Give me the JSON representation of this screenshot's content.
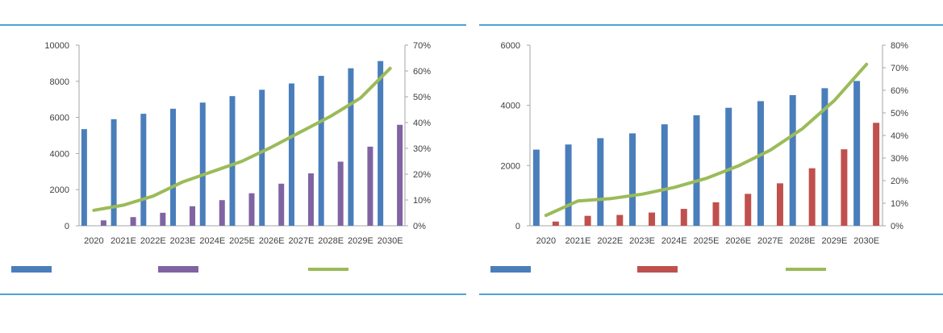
{
  "chart_data": [
    {
      "type": "bar",
      "title": "",
      "categories": [
        "2020",
        "2021E",
        "2022E",
        "2023E",
        "2024E",
        "2025E",
        "2026E",
        "2027E",
        "2028E",
        "2029E",
        "2030E"
      ],
      "series": [
        {
          "name": "",
          "kind": "bar",
          "axis": "left",
          "color": "#4a7ebb",
          "values": [
            5350,
            5900,
            6200,
            6480,
            6820,
            7180,
            7530,
            7880,
            8300,
            8720,
            9120
          ]
        },
        {
          "name": "",
          "kind": "bar",
          "axis": "left",
          "color": "#8064a2",
          "values": [
            300,
            480,
            720,
            1080,
            1420,
            1800,
            2330,
            2900,
            3550,
            4380,
            5590
          ]
        },
        {
          "name": "",
          "kind": "line",
          "axis": "right",
          "color": "#9bbb59",
          "values": [
            6,
            8,
            11.5,
            17,
            21,
            25,
            30.5,
            36.5,
            42.5,
            49.5,
            61
          ]
        }
      ],
      "yleft": {
        "min": 0,
        "max": 10000,
        "ticks": [
          "0",
          "2000",
          "4000",
          "6000",
          "8000",
          "10000"
        ]
      },
      "yright": {
        "min": 0,
        "max": 70,
        "ticks": [
          "0%",
          "10%",
          "20%",
          "30%",
          "40%",
          "50%",
          "60%",
          "70%"
        ]
      },
      "legend": "bottom",
      "grid": false
    },
    {
      "type": "bar",
      "title": "",
      "categories": [
        "2020",
        "2021E",
        "2022E",
        "2023E",
        "2024E",
        "2025E",
        "2026E",
        "2027E",
        "2028E",
        "2029E",
        "2030E"
      ],
      "series": [
        {
          "name": "",
          "kind": "bar",
          "axis": "left",
          "color": "#4a7ebb",
          "values": [
            2530,
            2700,
            2910,
            3070,
            3370,
            3670,
            3920,
            4140,
            4340,
            4570,
            4810
          ]
        },
        {
          "name": "",
          "kind": "bar",
          "axis": "left",
          "color": "#c0504d",
          "values": [
            140,
            330,
            360,
            440,
            560,
            780,
            1060,
            1410,
            1910,
            2540,
            3420
          ]
        },
        {
          "name": "",
          "kind": "line",
          "axis": "right",
          "color": "#9bbb59",
          "values": [
            4.6,
            11,
            12,
            14,
            17,
            21,
            26.5,
            33.5,
            43,
            55.5,
            71.5
          ]
        }
      ],
      "yleft": {
        "min": 0,
        "max": 6000,
        "ticks": [
          "0",
          "2000",
          "4000",
          "6000"
        ]
      },
      "yright": {
        "min": 0,
        "max": 80,
        "ticks": [
          "0%",
          "10%",
          "20%",
          "30%",
          "40%",
          "50%",
          "60%",
          "70%",
          "80%"
        ]
      },
      "legend": "bottom",
      "grid": false
    }
  ],
  "panels": [
    {
      "title": "",
      "source": ""
    },
    {
      "title": "",
      "source": ""
    }
  ]
}
